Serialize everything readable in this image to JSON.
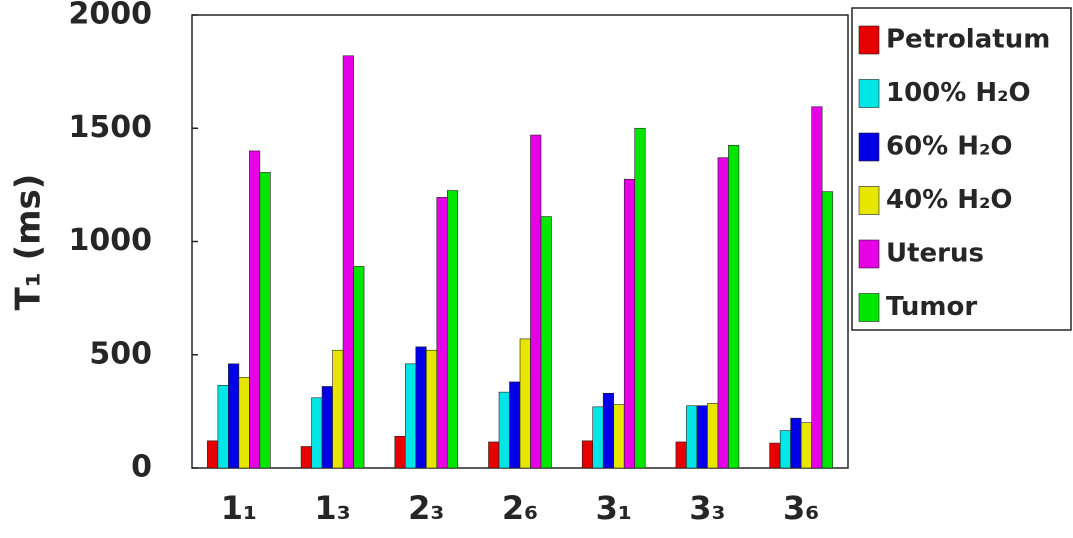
{
  "chart_data": {
    "type": "bar",
    "y_label": "T₁ (ms)",
    "categories": [
      "1₁",
      "1₃",
      "2₃",
      "2₆",
      "3₁",
      "3₃",
      "3₆"
    ],
    "series": [
      {
        "name": "Petrolatum",
        "color": "#e60000",
        "values": [
          120,
          95,
          140,
          115,
          120,
          115,
          110
        ]
      },
      {
        "name": "100% H₂O",
        "color": "#00e6e6",
        "values": [
          365,
          310,
          460,
          335,
          270,
          275,
          165
        ]
      },
      {
        "name": "60% H₂O",
        "color": "#0000e6",
        "values": [
          460,
          360,
          535,
          380,
          330,
          275,
          220
        ]
      },
      {
        "name": "40% H₂O",
        "color": "#e6e600",
        "values": [
          400,
          520,
          520,
          570,
          280,
          285,
          200
        ]
      },
      {
        "name": "Uterus",
        "color": "#e600e6",
        "values": [
          1400,
          1820,
          1195,
          1470,
          1275,
          1370,
          1595
        ]
      },
      {
        "name": "Tumor",
        "color": "#00e600",
        "values": [
          1305,
          890,
          1225,
          1110,
          1500,
          1425,
          1220
        ]
      }
    ],
    "ylim": [
      0,
      2000
    ],
    "yticks": [
      0,
      500,
      1000,
      1500,
      2000
    ],
    "grid": false,
    "legend": "right"
  }
}
